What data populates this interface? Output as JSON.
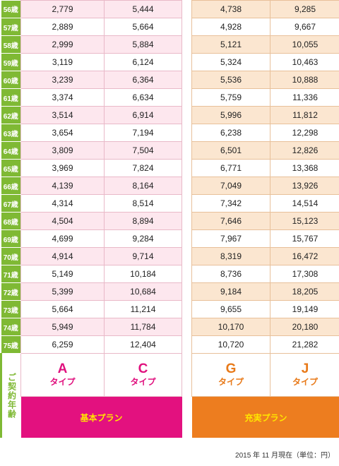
{
  "rows": [
    {
      "age": "56歳",
      "a": "2,779",
      "c": "5,444",
      "g": "4,738",
      "j": "9,285"
    },
    {
      "age": "57歳",
      "a": "2,889",
      "c": "5,664",
      "g": "4,928",
      "j": "9,667"
    },
    {
      "age": "58歳",
      "a": "2,999",
      "c": "5,884",
      "g": "5,121",
      "j": "10,055"
    },
    {
      "age": "59歳",
      "a": "3,119",
      "c": "6,124",
      "g": "5,324",
      "j": "10,463"
    },
    {
      "age": "60歳",
      "a": "3,239",
      "c": "6,364",
      "g": "5,536",
      "j": "10,888"
    },
    {
      "age": "61歳",
      "a": "3,374",
      "c": "6,634",
      "g": "5,759",
      "j": "11,336"
    },
    {
      "age": "62歳",
      "a": "3,514",
      "c": "6,914",
      "g": "5,996",
      "j": "11,812"
    },
    {
      "age": "63歳",
      "a": "3,654",
      "c": "7,194",
      "g": "6,238",
      "j": "12,298"
    },
    {
      "age": "64歳",
      "a": "3,809",
      "c": "7,504",
      "g": "6,501",
      "j": "12,826"
    },
    {
      "age": "65歳",
      "a": "3,969",
      "c": "7,824",
      "g": "6,771",
      "j": "13,368"
    },
    {
      "age": "66歳",
      "a": "4,139",
      "c": "8,164",
      "g": "7,049",
      "j": "13,926"
    },
    {
      "age": "67歳",
      "a": "4,314",
      "c": "8,514",
      "g": "7,342",
      "j": "14,514"
    },
    {
      "age": "68歳",
      "a": "4,504",
      "c": "8,894",
      "g": "7,646",
      "j": "15,123"
    },
    {
      "age": "69歳",
      "a": "4,699",
      "c": "9,284",
      "g": "7,967",
      "j": "15,767"
    },
    {
      "age": "70歳",
      "a": "4,914",
      "c": "9,714",
      "g": "8,319",
      "j": "16,472"
    },
    {
      "age": "71歳",
      "a": "5,149",
      "c": "10,184",
      "g": "8,736",
      "j": "17,308"
    },
    {
      "age": "72歳",
      "a": "5,399",
      "c": "10,684",
      "g": "9,184",
      "j": "18,205"
    },
    {
      "age": "73歳",
      "a": "5,664",
      "c": "11,214",
      "g": "9,655",
      "j": "19,149"
    },
    {
      "age": "74歳",
      "a": "5,949",
      "c": "11,784",
      "g": "10,170",
      "j": "20,180"
    },
    {
      "age": "75歳",
      "a": "6,259",
      "c": "12,404",
      "g": "10,720",
      "j": "21,282"
    }
  ],
  "types": {
    "a": {
      "letter": "A",
      "word": "タイプ"
    },
    "c": {
      "letter": "C",
      "word": "タイプ"
    },
    "g": {
      "letter": "G",
      "word": "タイプ"
    },
    "j": {
      "letter": "J",
      "word": "タイプ"
    }
  },
  "contract_age_label": "ご契約年齢",
  "plans": {
    "basic": "基本プラン",
    "extra": "充実プラン"
  },
  "footnote": "2015 年 11 月現在（単位：円）",
  "colors": {
    "age_green": "#7fb934",
    "basic_magenta": "#e3117f",
    "extra_orange": "#ed7d1f",
    "basic_row_tint": "#fde7ee",
    "extra_row_tint": "#fbe6d0",
    "plan_text_yellow": "#ffe600"
  }
}
